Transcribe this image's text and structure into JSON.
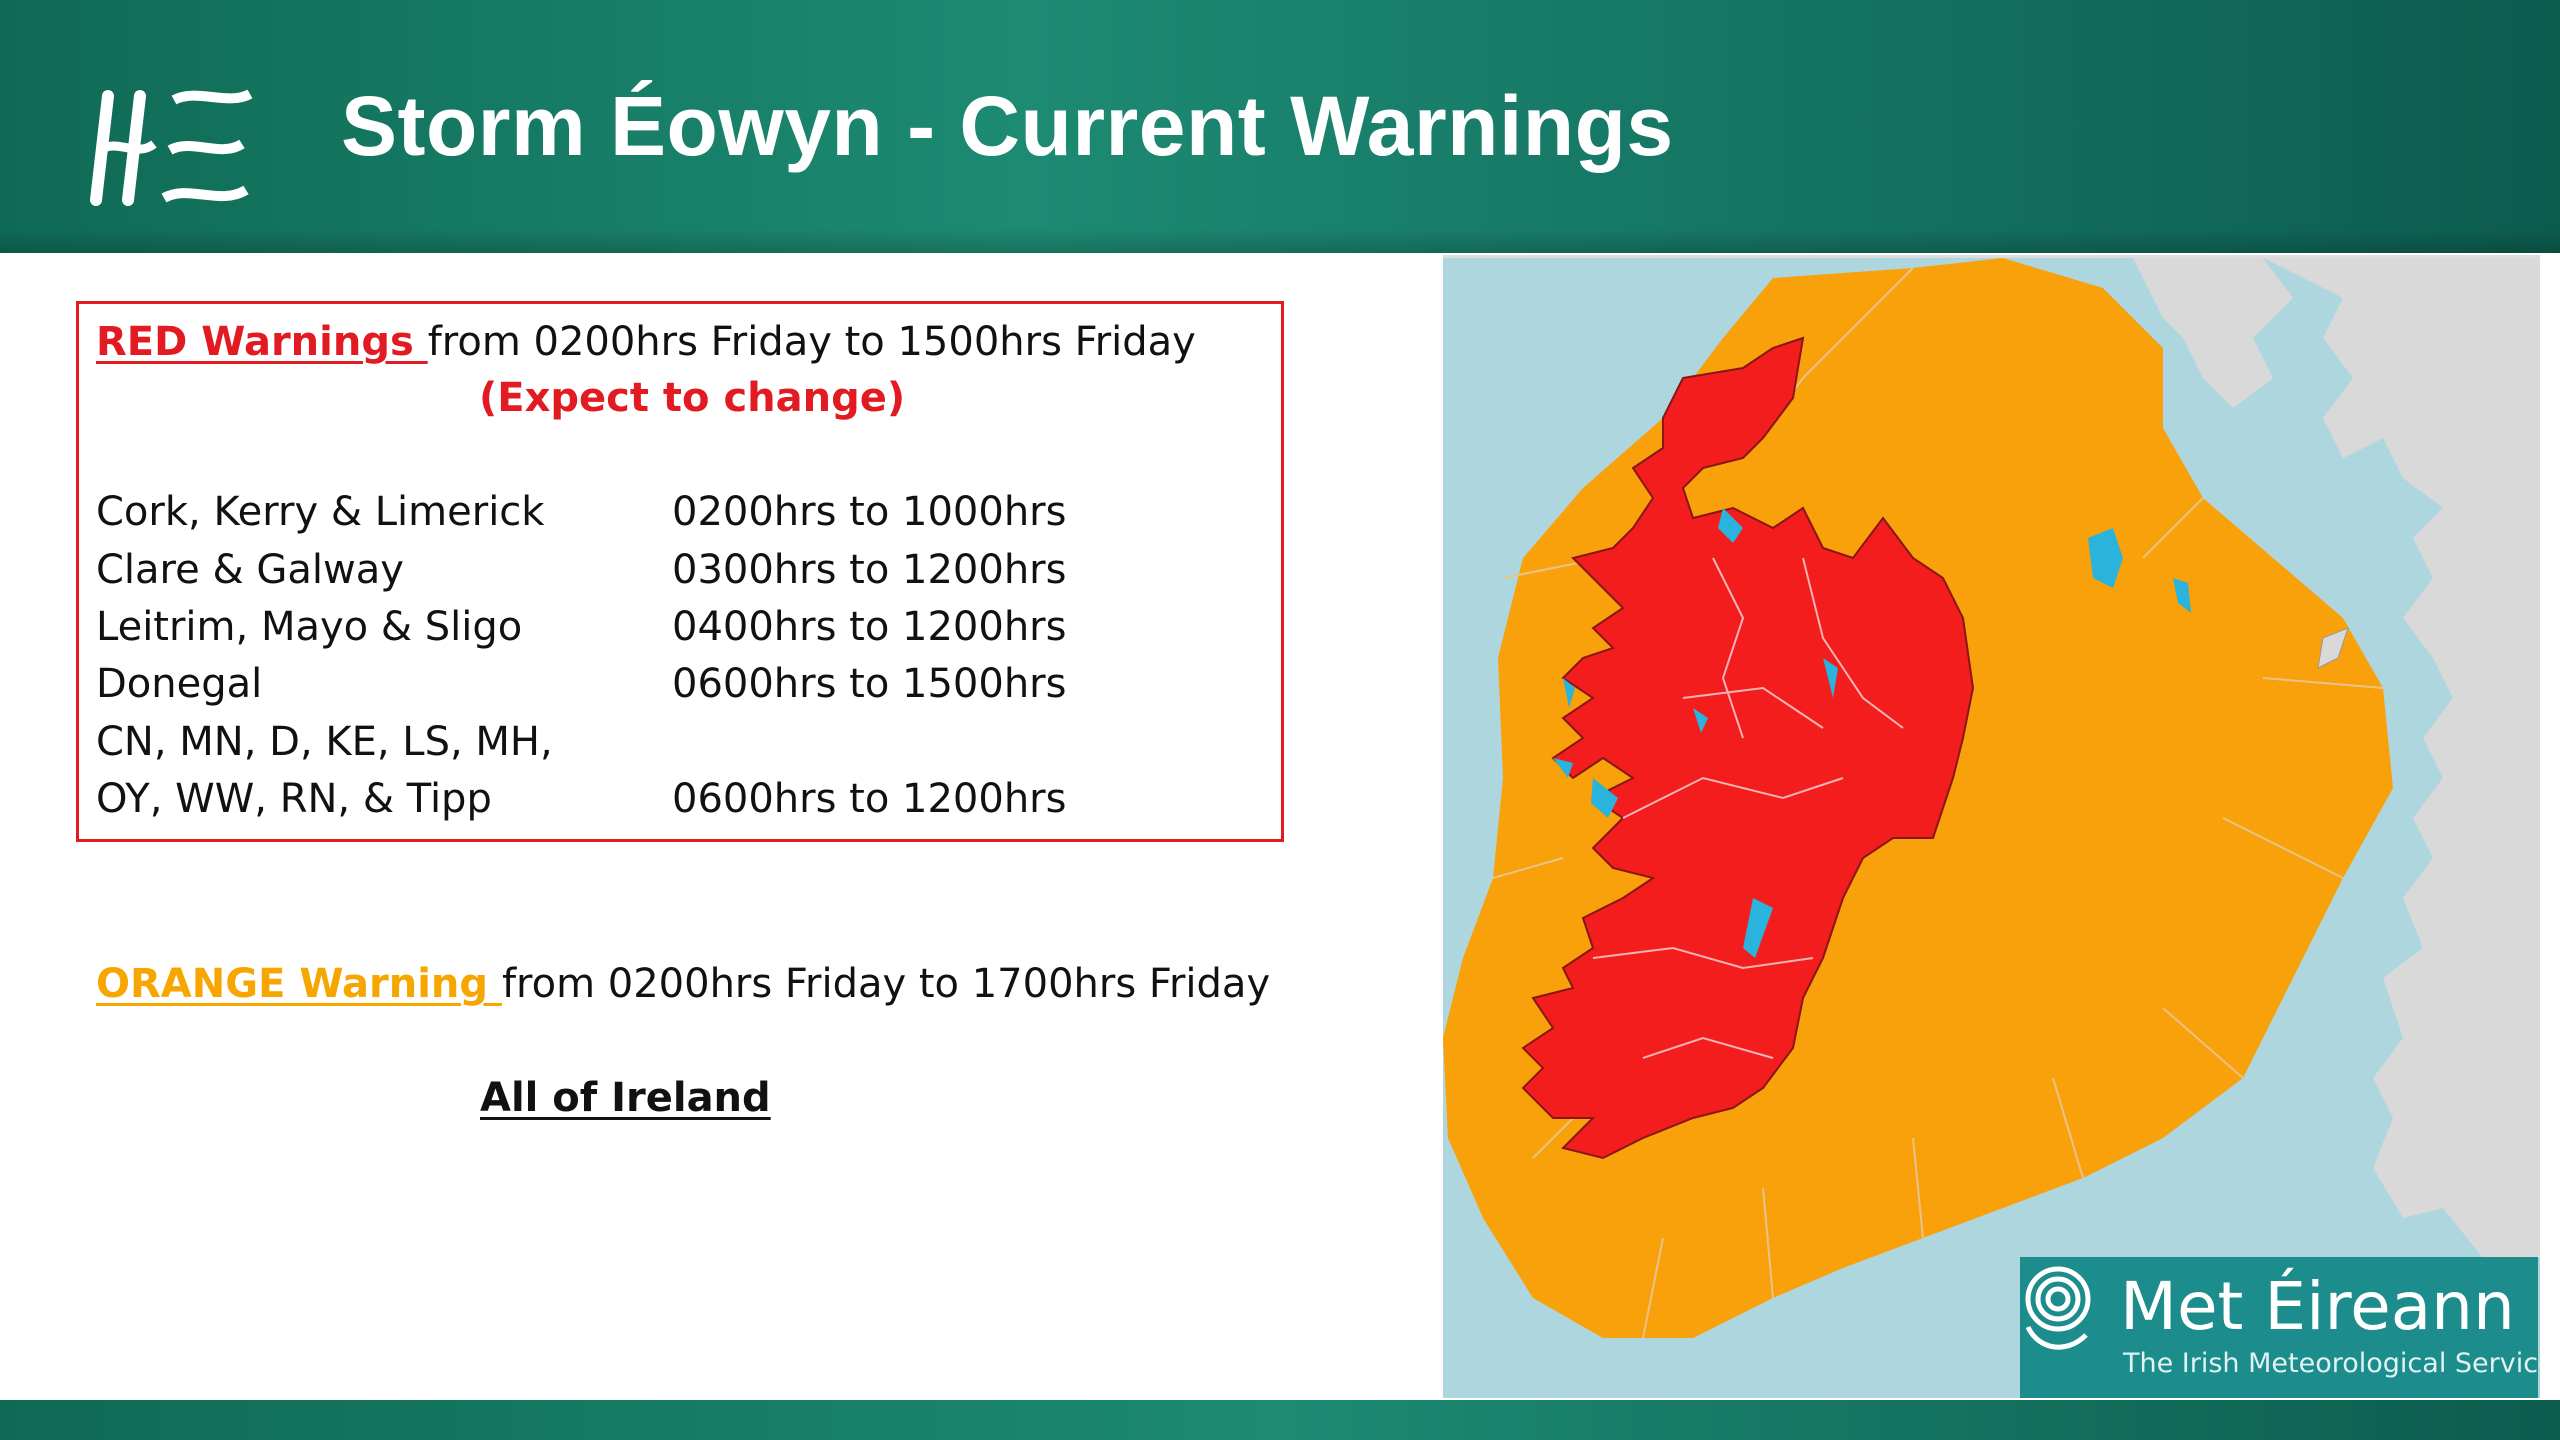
{
  "header": {
    "logo_text": "HSE",
    "title": "Storm Éowyn - Current Warnings"
  },
  "red_warning": {
    "label": "RED Warnings ",
    "period": "from 0200hrs Friday to 1500hrs Friday",
    "note": "(Expect to change)",
    "rows": [
      {
        "areas": "Cork, Kerry & Limerick",
        "times": "0200hrs to 1000hrs"
      },
      {
        "areas": "Clare & Galway",
        "times": "0300hrs to 1200hrs"
      },
      {
        "areas": "Leitrim, Mayo & Sligo",
        "times": "0400hrs to 1200hrs"
      },
      {
        "areas": "Donegal",
        "times": "0600hrs to 1500hrs"
      },
      {
        "areas": "CN, MN, D, KE, LS, MH,",
        "times": ""
      },
      {
        "areas": "OY, WW, RN, & Tipp",
        "times": "0600hrs to 1200hrs"
      }
    ]
  },
  "orange_warning": {
    "label": "ORANGE Warning ",
    "period": "from 0200hrs Friday to 1700hrs Friday",
    "scope": "All of Ireland"
  },
  "map": {
    "brand": "Met Éireann",
    "brand_sub": "The Irish Meteorological Service",
    "colors": {
      "sea": "#aed6df",
      "land_other": "#d9d9d9",
      "orange_zone": "#f9a10a",
      "red_zone": "#f31d1d",
      "lakes": "#2ab3dc",
      "brand_bg": "#1d8c8c"
    }
  },
  "colors": {
    "header_green": "#1d8a72",
    "red": "#e21b22",
    "orange": "#f7a600"
  }
}
